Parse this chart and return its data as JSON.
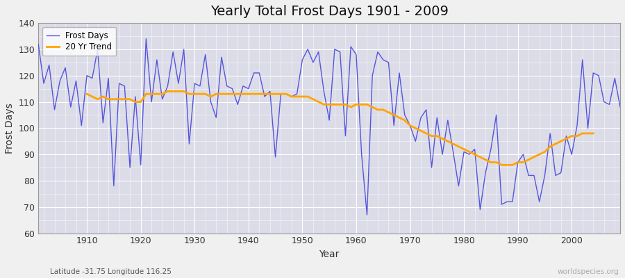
{
  "title": "Yearly Total Frost Days 1901 - 2009",
  "xlabel": "Year",
  "ylabel": "Frost Days",
  "subtitle": "Latitude -31.75 Longitude 116.25",
  "watermark": "worldspecies.org",
  "legend_labels": [
    "Frost Days",
    "20 Yr Trend"
  ],
  "line_color": "#5555dd",
  "trend_color": "#FFA500",
  "plot_bg_color": "#dcdce8",
  "fig_bg_color": "#f0f0f0",
  "ylim": [
    60,
    140
  ],
  "xlim": [
    1901,
    2009
  ],
  "yticks": [
    60,
    70,
    80,
    90,
    100,
    110,
    120,
    130,
    140
  ],
  "frost_days": {
    "1901": 132,
    "1902": 117,
    "1903": 124,
    "1904": 107,
    "1905": 118,
    "1906": 123,
    "1907": 108,
    "1908": 118,
    "1909": 101,
    "1910": 120,
    "1911": 119,
    "1912": 130,
    "1913": 102,
    "1914": 119,
    "1915": 78,
    "1916": 117,
    "1917": 116,
    "1918": 85,
    "1919": 112,
    "1920": 86,
    "1921": 134,
    "1922": 110,
    "1923": 126,
    "1924": 111,
    "1925": 116,
    "1926": 129,
    "1927": 117,
    "1928": 130,
    "1929": 94,
    "1930": 117,
    "1931": 116,
    "1932": 128,
    "1933": 110,
    "1934": 104,
    "1935": 127,
    "1936": 116,
    "1937": 115,
    "1938": 109,
    "1939": 116,
    "1940": 115,
    "1941": 121,
    "1942": 121,
    "1943": 112,
    "1944": 114,
    "1945": 89,
    "1946": 113,
    "1947": 113,
    "1948": 112,
    "1949": 113,
    "1950": 126,
    "1951": 130,
    "1952": 125,
    "1953": 129,
    "1954": 114,
    "1955": 103,
    "1956": 130,
    "1957": 129,
    "1958": 97,
    "1959": 131,
    "1960": 128,
    "1961": 90,
    "1962": 67,
    "1963": 120,
    "1964": 129,
    "1965": 126,
    "1966": 125,
    "1967": 101,
    "1968": 121,
    "1969": 105,
    "1970": 101,
    "1971": 95,
    "1972": 104,
    "1973": 107,
    "1974": 85,
    "1975": 104,
    "1976": 90,
    "1977": 103,
    "1978": 91,
    "1979": 78,
    "1980": 91,
    "1981": 90,
    "1982": 92,
    "1983": 69,
    "1984": 83,
    "1985": 92,
    "1986": 105,
    "1987": 71,
    "1988": 72,
    "1989": 72,
    "1990": 87,
    "1991": 90,
    "1992": 82,
    "1993": 82,
    "1994": 72,
    "1995": 82,
    "1996": 98,
    "1997": 82,
    "1998": 83,
    "1999": 97,
    "2000": 90,
    "2001": 101,
    "2002": 126,
    "2003": 100,
    "2004": 121,
    "2005": 120,
    "2006": 110,
    "2007": 109,
    "2008": 119,
    "2009": 108
  },
  "trend_data": {
    "1910": 113,
    "1911": 112,
    "1912": 111,
    "1913": 112,
    "1914": 111,
    "1915": 111,
    "1916": 111,
    "1917": 111,
    "1918": 111,
    "1919": 110,
    "1920": 110,
    "1921": 113,
    "1922": 113,
    "1923": 113,
    "1924": 113,
    "1925": 114,
    "1926": 114,
    "1927": 114,
    "1928": 114,
    "1929": 113,
    "1930": 113,
    "1931": 113,
    "1932": 113,
    "1933": 112,
    "1934": 113,
    "1935": 113,
    "1936": 113,
    "1937": 113,
    "1938": 113,
    "1939": 113,
    "1940": 113,
    "1941": 113,
    "1942": 113,
    "1943": 113,
    "1944": 113,
    "1945": 113,
    "1946": 113,
    "1947": 113,
    "1948": 112,
    "1949": 112,
    "1950": 112,
    "1951": 112,
    "1952": 111,
    "1953": 110,
    "1954": 109,
    "1955": 109,
    "1956": 109,
    "1957": 109,
    "1958": 109,
    "1959": 108,
    "1960": 109,
    "1961": 109,
    "1962": 109,
    "1963": 108,
    "1964": 107,
    "1965": 107,
    "1966": 106,
    "1967": 105,
    "1968": 104,
    "1969": 103,
    "1970": 101,
    "1971": 100,
    "1972": 99,
    "1973": 98,
    "1974": 97,
    "1975": 97,
    "1976": 96,
    "1977": 95,
    "1978": 94,
    "1979": 93,
    "1980": 92,
    "1981": 91,
    "1982": 90,
    "1983": 89,
    "1984": 88,
    "1985": 87,
    "1986": 87,
    "1987": 86,
    "1988": 86,
    "1989": 86,
    "1990": 87,
    "1991": 87,
    "1992": 88,
    "1993": 89,
    "1994": 90,
    "1995": 91,
    "1996": 93,
    "1997": 94,
    "1998": 95,
    "1999": 96,
    "2000": 97,
    "2001": 97,
    "2002": 98,
    "2003": 98,
    "2004": 98
  }
}
